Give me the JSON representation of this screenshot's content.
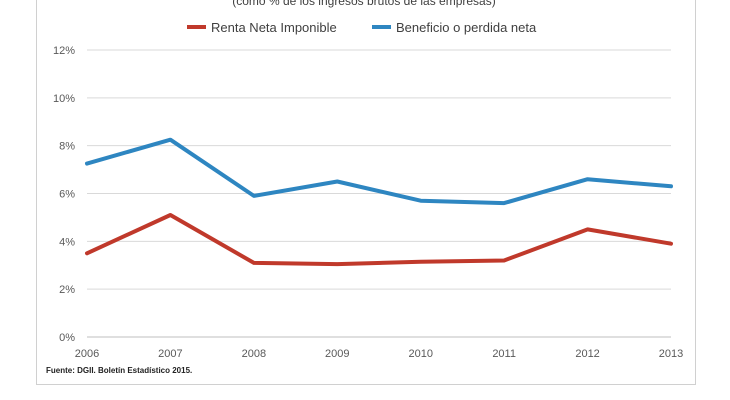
{
  "chart_data": {
    "type": "line",
    "subtitle": "(como % de los ingresos brutos de las empresas)",
    "x": [
      "2006",
      "2007",
      "2008",
      "2009",
      "2010",
      "2011",
      "2012",
      "2013"
    ],
    "series": [
      {
        "name": "Renta Neta Imponible",
        "color": "#c0392b",
        "values": [
          3.5,
          5.1,
          3.1,
          3.05,
          3.15,
          3.2,
          4.5,
          3.9
        ]
      },
      {
        "name": "Beneficio o perdida neta",
        "color": "#2e86c1",
        "values": [
          7.25,
          8.25,
          5.9,
          6.5,
          5.7,
          5.6,
          6.6,
          6.3
        ]
      }
    ],
    "yticks": [
      "0%",
      "2%",
      "4%",
      "6%",
      "8%",
      "10%",
      "12%"
    ],
    "ylim": [
      0,
      12
    ],
    "grid": true,
    "legend": "top"
  },
  "source": "Fuente: DGII. Boletín Estadístico 2015."
}
